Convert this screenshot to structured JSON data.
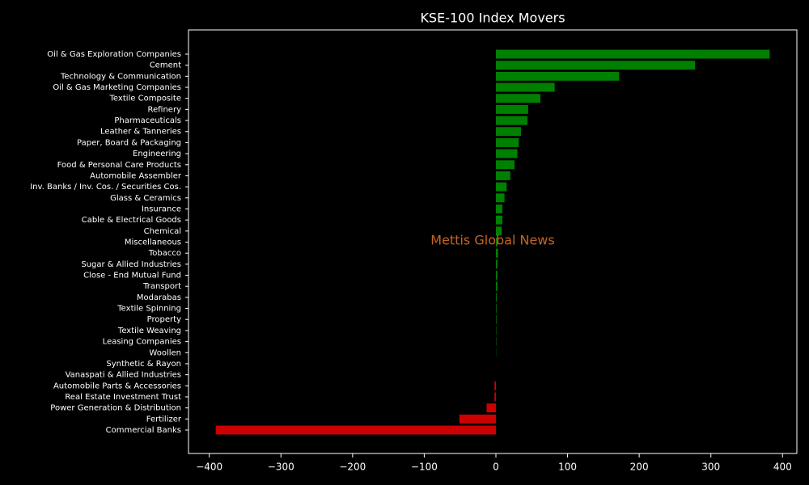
{
  "chart_data": {
    "type": "barh",
    "title": "KSE-100 Index Movers",
    "categories": [
      "Oil & Gas Exploration Companies",
      "Cement",
      "Technology & Communication",
      "Oil & Gas Marketing Companies",
      "Textile Composite",
      "Refinery",
      "Pharmaceuticals",
      "Leather & Tanneries",
      "Paper, Board & Packaging",
      "Engineering",
      "Food & Personal Care Products",
      "Automobile Assembler",
      "Inv. Banks / Inv. Cos. / Securities Cos.",
      "Glass & Ceramics",
      "Insurance",
      "Cable & Electrical Goods",
      "Chemical",
      "Miscellaneous",
      "Tobacco",
      "Sugar & Allied Industries",
      "Close - End Mutual Fund",
      "Transport",
      "Modarabas",
      "Textile Spinning",
      "Property",
      "Textile Weaving",
      "Leasing Companies",
      "Woollen",
      "Synthetic & Rayon",
      "Vanaspati & Allied Industries",
      "Automobile Parts & Accessories",
      "Real Estate Investment Trust",
      "Power Generation & Distribution",
      "Fertilizer",
      "Commercial Banks"
    ],
    "values": [
      382,
      278,
      172,
      82,
      62,
      45,
      44,
      35,
      32,
      30,
      26,
      20,
      15,
      12,
      9,
      9,
      8,
      2,
      3,
      2,
      2,
      2,
      1,
      0.8,
      0.8,
      0.5,
      0.5,
      0.3,
      0,
      0,
      -2,
      -2,
      -13,
      -51,
      -391
    ],
    "positive_color": "#008000",
    "negative_color": "#cc0000",
    "xlim": [
      -429,
      420
    ],
    "xticks": [
      {
        "value": -400,
        "label": "−400"
      },
      {
        "value": -300,
        "label": "−300"
      },
      {
        "value": -200,
        "label": "−200"
      },
      {
        "value": -100,
        "label": "−100"
      },
      0,
      100,
      200,
      300,
      400
    ],
    "annotation": "Mettis Global News"
  }
}
